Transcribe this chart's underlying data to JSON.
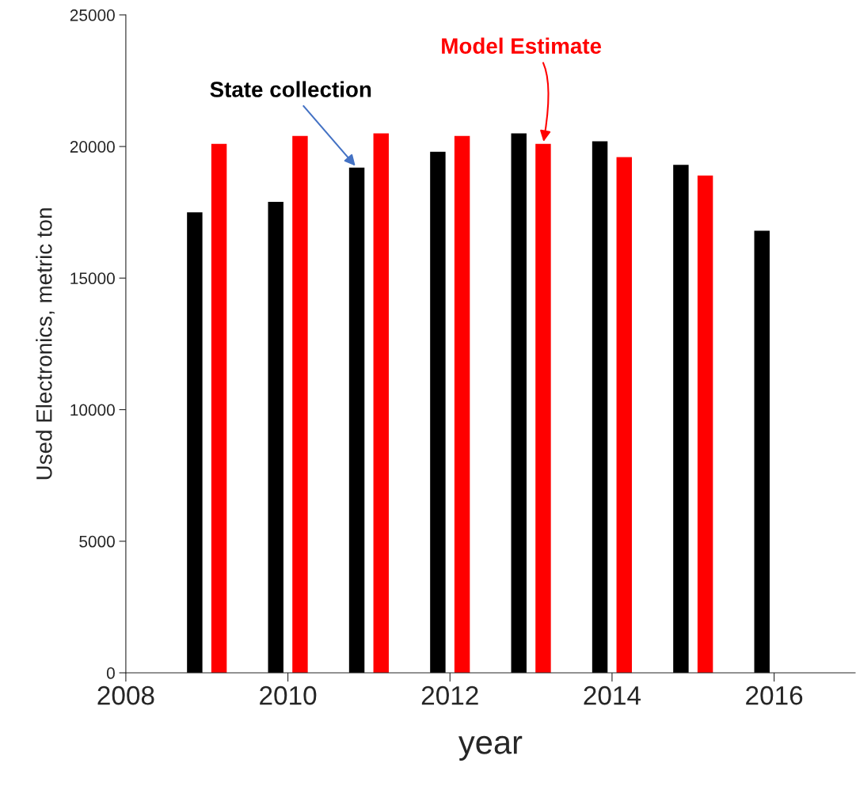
{
  "chart_data": {
    "type": "bar",
    "xlabel": "year",
    "ylabel": "Used Electronics, metric ton",
    "xlim": [
      2008,
      2017
    ],
    "xticks": [
      2008,
      2010,
      2012,
      2014,
      2016
    ],
    "ylim": [
      0,
      25000
    ],
    "yticks": [
      0,
      5000,
      10000,
      15000,
      20000,
      25000
    ],
    "grid": false,
    "legend": false,
    "series": [
      {
        "name": "State collection",
        "color": "#000000",
        "x": [
          2009,
          2010,
          2011,
          2012,
          2013,
          2014,
          2015,
          2016
        ],
        "values": [
          17500,
          17900,
          19200,
          19800,
          20500,
          20200,
          19300,
          16800
        ]
      },
      {
        "name": "Model Estimate",
        "color": "#ff0000",
        "x": [
          2009,
          2010,
          2011,
          2012,
          2013,
          2014,
          2015
        ],
        "values": [
          20100,
          20400,
          20500,
          20400,
          20100,
          19600,
          18900
        ]
      }
    ]
  }
}
